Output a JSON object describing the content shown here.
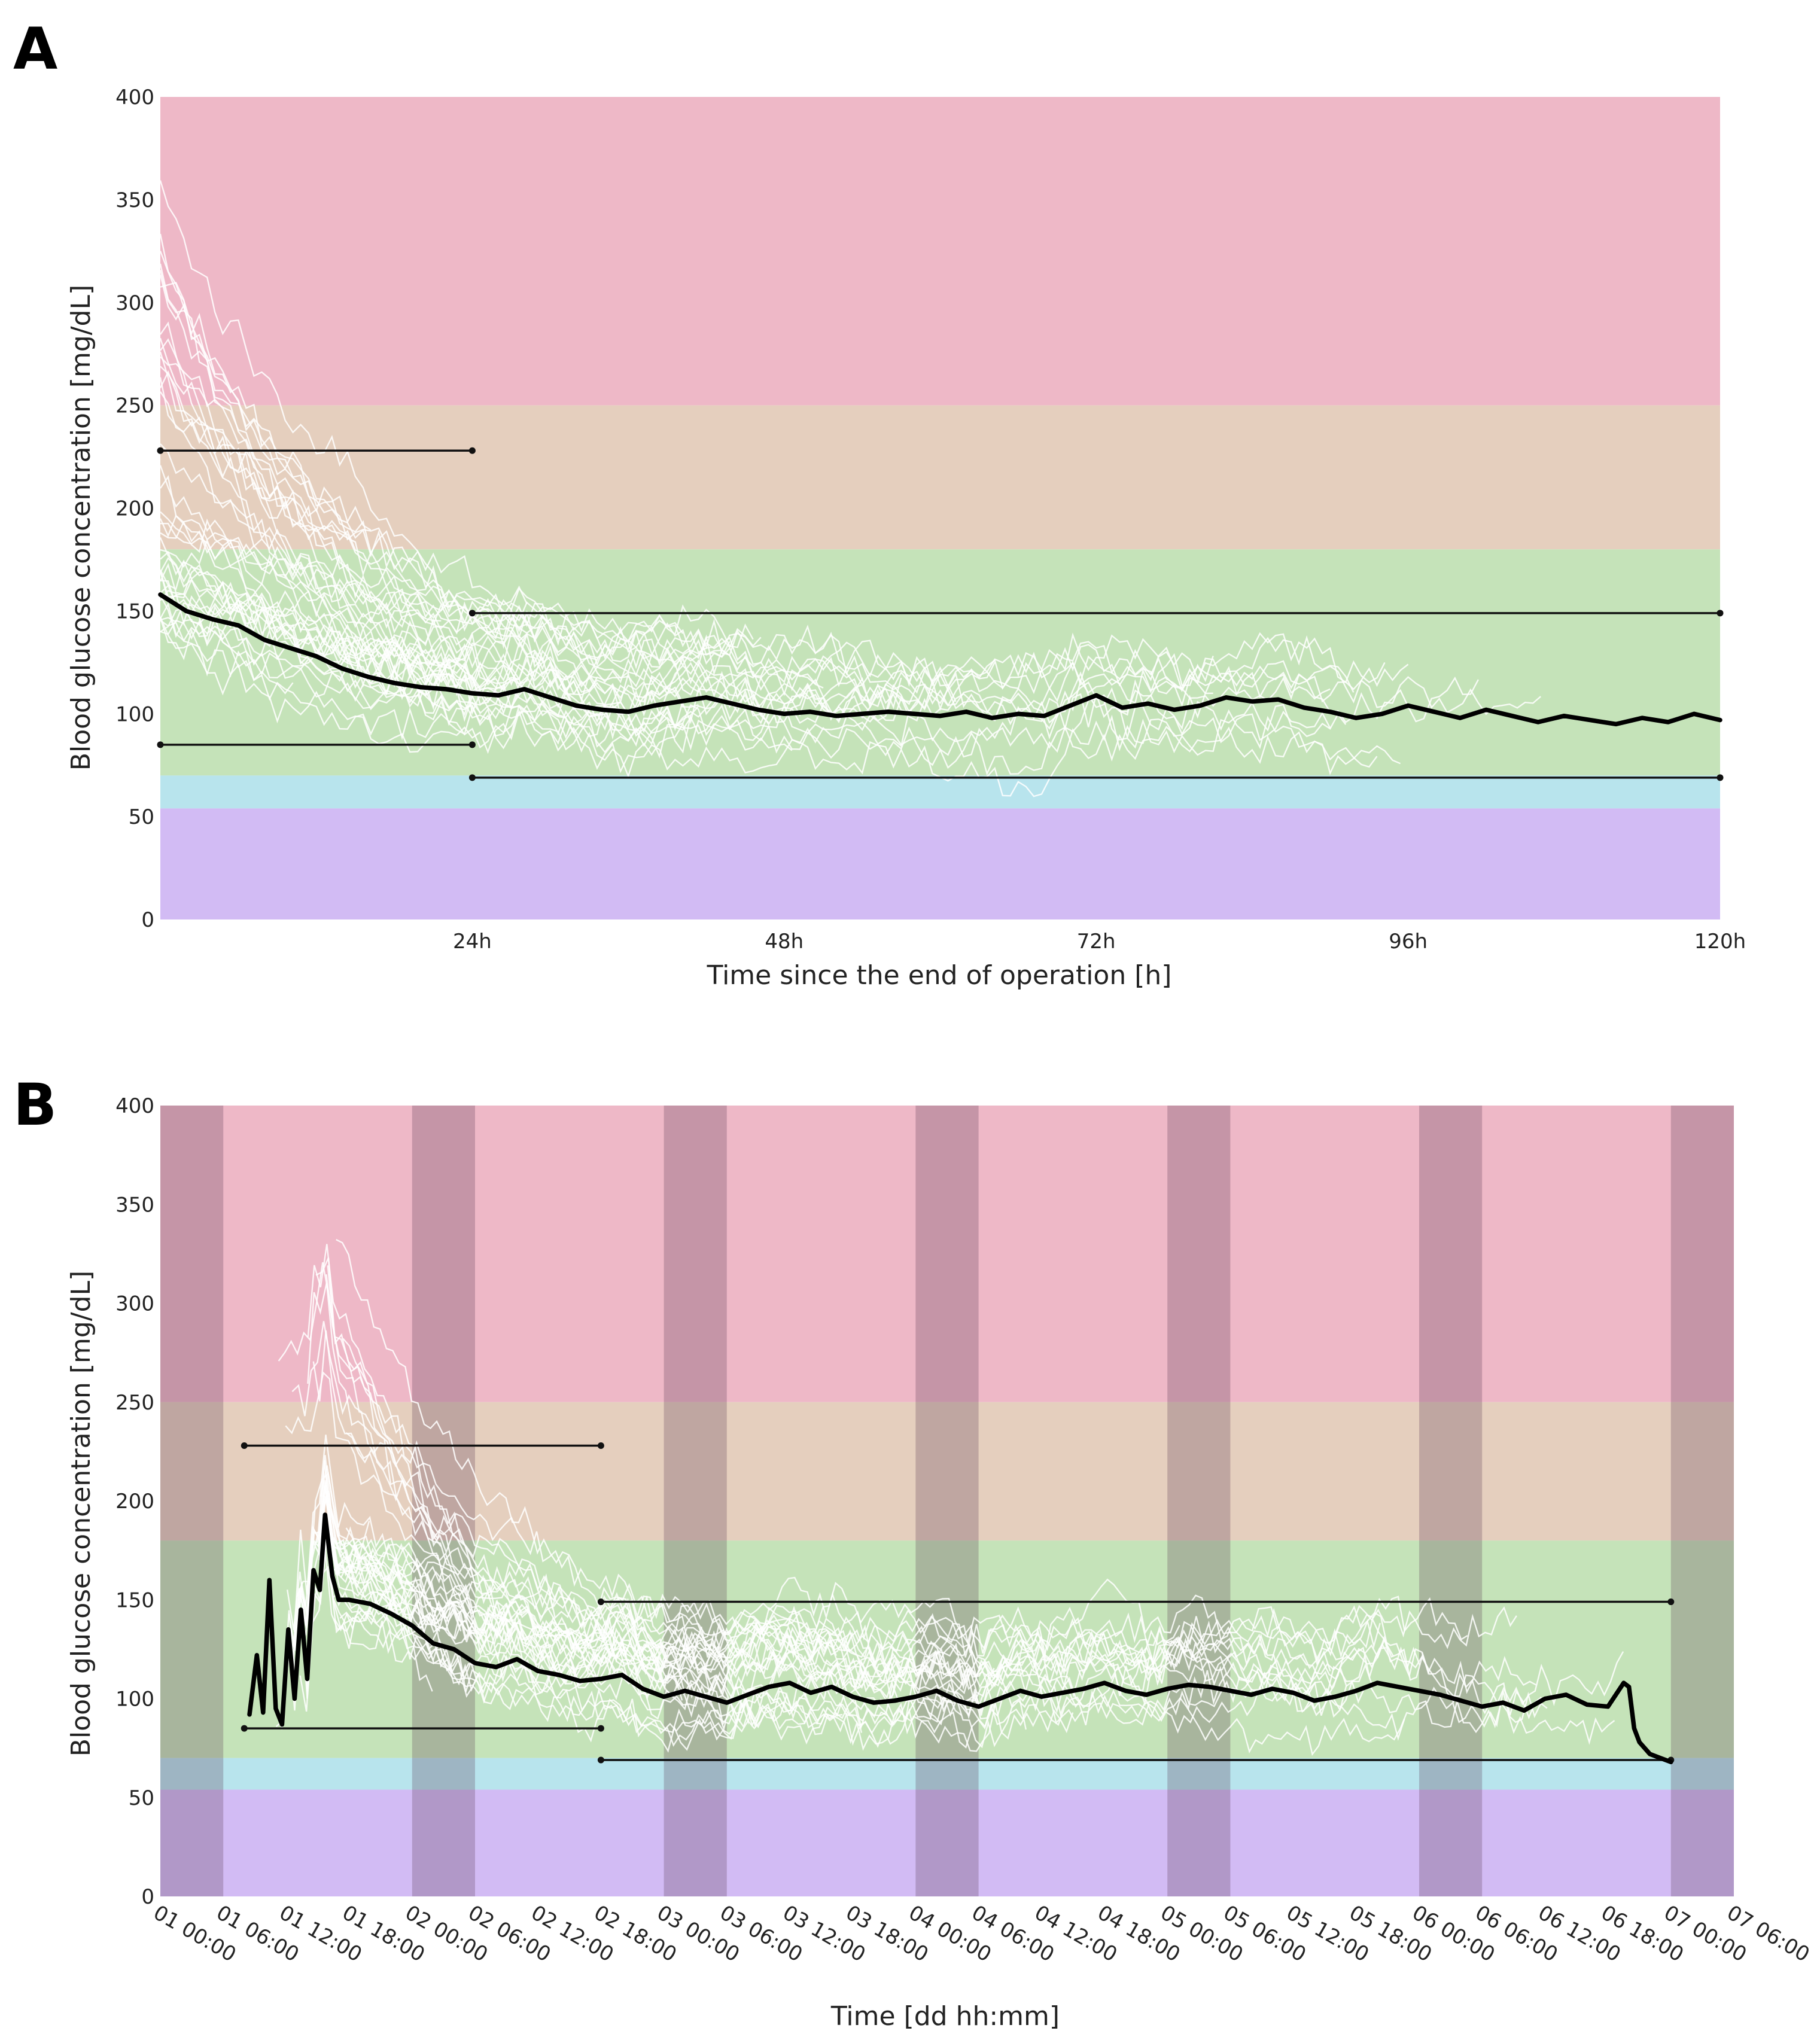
{
  "chart_data": [
    {
      "panel": "A",
      "type": "line",
      "xlabel": "Time since the end of operation [h]",
      "ylabel": "Blood glucose concentration [mg/dL]",
      "xlim": [
        0,
        120
      ],
      "ylim": [
        0,
        400
      ],
      "x_ticks": [
        {
          "value": 24,
          "label": "24h"
        },
        {
          "value": 48,
          "label": "48h"
        },
        {
          "value": 72,
          "label": "72h"
        },
        {
          "value": 96,
          "label": "96h"
        },
        {
          "value": 120,
          "label": "120h"
        }
      ],
      "y_ticks": [
        0,
        50,
        100,
        150,
        200,
        250,
        300,
        350,
        400
      ],
      "bands": [
        {
          "name": "severe hyperglycemia",
          "from": 250,
          "to": 400,
          "color": "#eeb8c7"
        },
        {
          "name": "hyperglycemia",
          "from": 180,
          "to": 250,
          "color": "#e5cfbe"
        },
        {
          "name": "target range",
          "from": 70,
          "to": 180,
          "color": "#c5e3b9"
        },
        {
          "name": "hypoglycemia",
          "from": 54,
          "to": 70,
          "color": "#b8e4ed"
        },
        {
          "name": "severe hypoglycemia",
          "from": 0,
          "to": 54,
          "color": "#d2bbf4"
        }
      ],
      "reference_lines": [
        {
          "x0": 0,
          "x1": 24,
          "y": 228
        },
        {
          "x0": 0,
          "x1": 24,
          "y": 85
        },
        {
          "x0": 24,
          "x1": 120,
          "y": 149
        },
        {
          "x0": 24,
          "x1": 120,
          "y": 69
        }
      ],
      "series": [
        {
          "name": "median",
          "color": "#000000",
          "x": [
            0,
            2,
            4,
            6,
            8,
            10,
            12,
            14,
            16,
            18,
            20,
            22,
            24,
            26,
            28,
            30,
            32,
            34,
            36,
            38,
            40,
            42,
            44,
            46,
            48,
            50,
            52,
            54,
            56,
            58,
            60,
            62,
            64,
            66,
            68,
            70,
            72,
            74,
            76,
            78,
            80,
            82,
            84,
            86,
            88,
            90,
            92,
            94,
            96,
            98,
            100,
            102,
            104,
            106,
            108,
            110,
            112,
            114,
            116,
            118,
            120
          ],
          "y": [
            158,
            150,
            146,
            143,
            136,
            132,
            128,
            122,
            118,
            115,
            113,
            112,
            110,
            109,
            112,
            108,
            104,
            102,
            101,
            104,
            106,
            108,
            105,
            102,
            100,
            101,
            99,
            100,
            101,
            100,
            99,
            101,
            98,
            100,
            99,
            104,
            109,
            103,
            105,
            102,
            104,
            108,
            106,
            107,
            103,
            101,
            98,
            100,
            104,
            101,
            98,
            102,
            99,
            96,
            99,
            97,
            95,
            98,
            96,
            100,
            97
          ]
        }
      ],
      "patient_traces_color": "#ffffff"
    },
    {
      "panel": "B",
      "type": "line",
      "xlabel": "Time [dd hh:mm]",
      "ylabel": "Blood glucose concentration [mg/dL]",
      "xlim": [
        0,
        150
      ],
      "ylim": [
        0,
        400
      ],
      "x_ticks": [
        {
          "value": 0,
          "label": "01 00:00"
        },
        {
          "value": 6,
          "label": "01 06:00"
        },
        {
          "value": 12,
          "label": "01 12:00"
        },
        {
          "value": 18,
          "label": "01 18:00"
        },
        {
          "value": 24,
          "label": "02 00:00"
        },
        {
          "value": 30,
          "label": "02 06:00"
        },
        {
          "value": 36,
          "label": "02 12:00"
        },
        {
          "value": 42,
          "label": "02 18:00"
        },
        {
          "value": 48,
          "label": "03 00:00"
        },
        {
          "value": 54,
          "label": "03 06:00"
        },
        {
          "value": 60,
          "label": "03 12:00"
        },
        {
          "value": 66,
          "label": "03 18:00"
        },
        {
          "value": 72,
          "label": "04 00:00"
        },
        {
          "value": 78,
          "label": "04 06:00"
        },
        {
          "value": 84,
          "label": "04 12:00"
        },
        {
          "value": 90,
          "label": "04 18:00"
        },
        {
          "value": 96,
          "label": "05 00:00"
        },
        {
          "value": 102,
          "label": "05 06:00"
        },
        {
          "value": 108,
          "label": "05 12:00"
        },
        {
          "value": 114,
          "label": "05 18:00"
        },
        {
          "value": 120,
          "label": "06 00:00"
        },
        {
          "value": 126,
          "label": "06 06:00"
        },
        {
          "value": 132,
          "label": "06 12:00"
        },
        {
          "value": 138,
          "label": "06 18:00"
        },
        {
          "value": 144,
          "label": "07 00:00"
        },
        {
          "value": 150,
          "label": "07 06:00"
        }
      ],
      "y_ticks": [
        0,
        50,
        100,
        150,
        200,
        250,
        300,
        350,
        400
      ],
      "bands": [
        {
          "name": "severe hyperglycemia",
          "from": 250,
          "to": 400,
          "color": "#eeb8c7"
        },
        {
          "name": "hyperglycemia",
          "from": 180,
          "to": 250,
          "color": "#e5cfbe"
        },
        {
          "name": "target range",
          "from": 70,
          "to": 180,
          "color": "#c5e3b9"
        },
        {
          "name": "hypoglycemia",
          "from": 54,
          "to": 70,
          "color": "#b8e4ed"
        },
        {
          "name": "severe hypoglycemia",
          "from": 0,
          "to": 54,
          "color": "#d2bbf4"
        }
      ],
      "night_shading": [
        [
          0,
          6
        ],
        [
          24,
          30
        ],
        [
          48,
          54
        ],
        [
          72,
          78
        ],
        [
          96,
          102
        ],
        [
          120,
          126
        ],
        [
          144,
          150
        ]
      ],
      "reference_lines": [
        {
          "x0": 8,
          "x1": 42,
          "y": 228
        },
        {
          "x0": 8,
          "x1": 42,
          "y": 85
        },
        {
          "x0": 42,
          "x1": 144,
          "y": 149
        },
        {
          "x0": 42,
          "x1": 144,
          "y": 69
        }
      ],
      "series": [
        {
          "name": "median",
          "color": "#000000",
          "x": [
            8.5,
            9.2,
            9.8,
            10.4,
            11.0,
            11.6,
            12.2,
            12.8,
            13.4,
            14.0,
            14.6,
            15.2,
            15.7,
            16.4,
            17.0,
            18,
            20,
            22,
            24,
            26,
            28,
            30,
            32,
            34,
            36,
            38,
            40,
            42,
            44,
            46,
            48,
            50,
            52,
            54,
            56,
            58,
            60,
            62,
            64,
            66,
            68,
            70,
            72,
            74,
            76,
            78,
            80,
            82,
            84,
            86,
            88,
            90,
            92,
            94,
            96,
            98,
            100,
            102,
            104,
            106,
            108,
            110,
            112,
            114,
            116,
            118,
            120,
            122,
            124,
            126,
            128,
            130,
            132,
            134,
            136,
            138,
            139.5,
            140,
            140.5,
            141,
            142,
            143,
            144
          ],
          "y": [
            92,
            122,
            93,
            160,
            95,
            87,
            135,
            100,
            145,
            110,
            165,
            155,
            193,
            162,
            150,
            150,
            148,
            143,
            137,
            128,
            125,
            118,
            116,
            120,
            114,
            112,
            109,
            110,
            112,
            105,
            101,
            104,
            101,
            98,
            102,
            106,
            108,
            103,
            106,
            101,
            98,
            99,
            101,
            104,
            99,
            96,
            100,
            104,
            101,
            103,
            105,
            108,
            104,
            102,
            105,
            107,
            106,
            104,
            102,
            105,
            103,
            99,
            101,
            104,
            108,
            106,
            104,
            102,
            99,
            96,
            98,
            94,
            100,
            102,
            97,
            96,
            108,
            106,
            85,
            78,
            72,
            70,
            68
          ]
        }
      ],
      "patient_traces_color": "#ffffff"
    }
  ]
}
